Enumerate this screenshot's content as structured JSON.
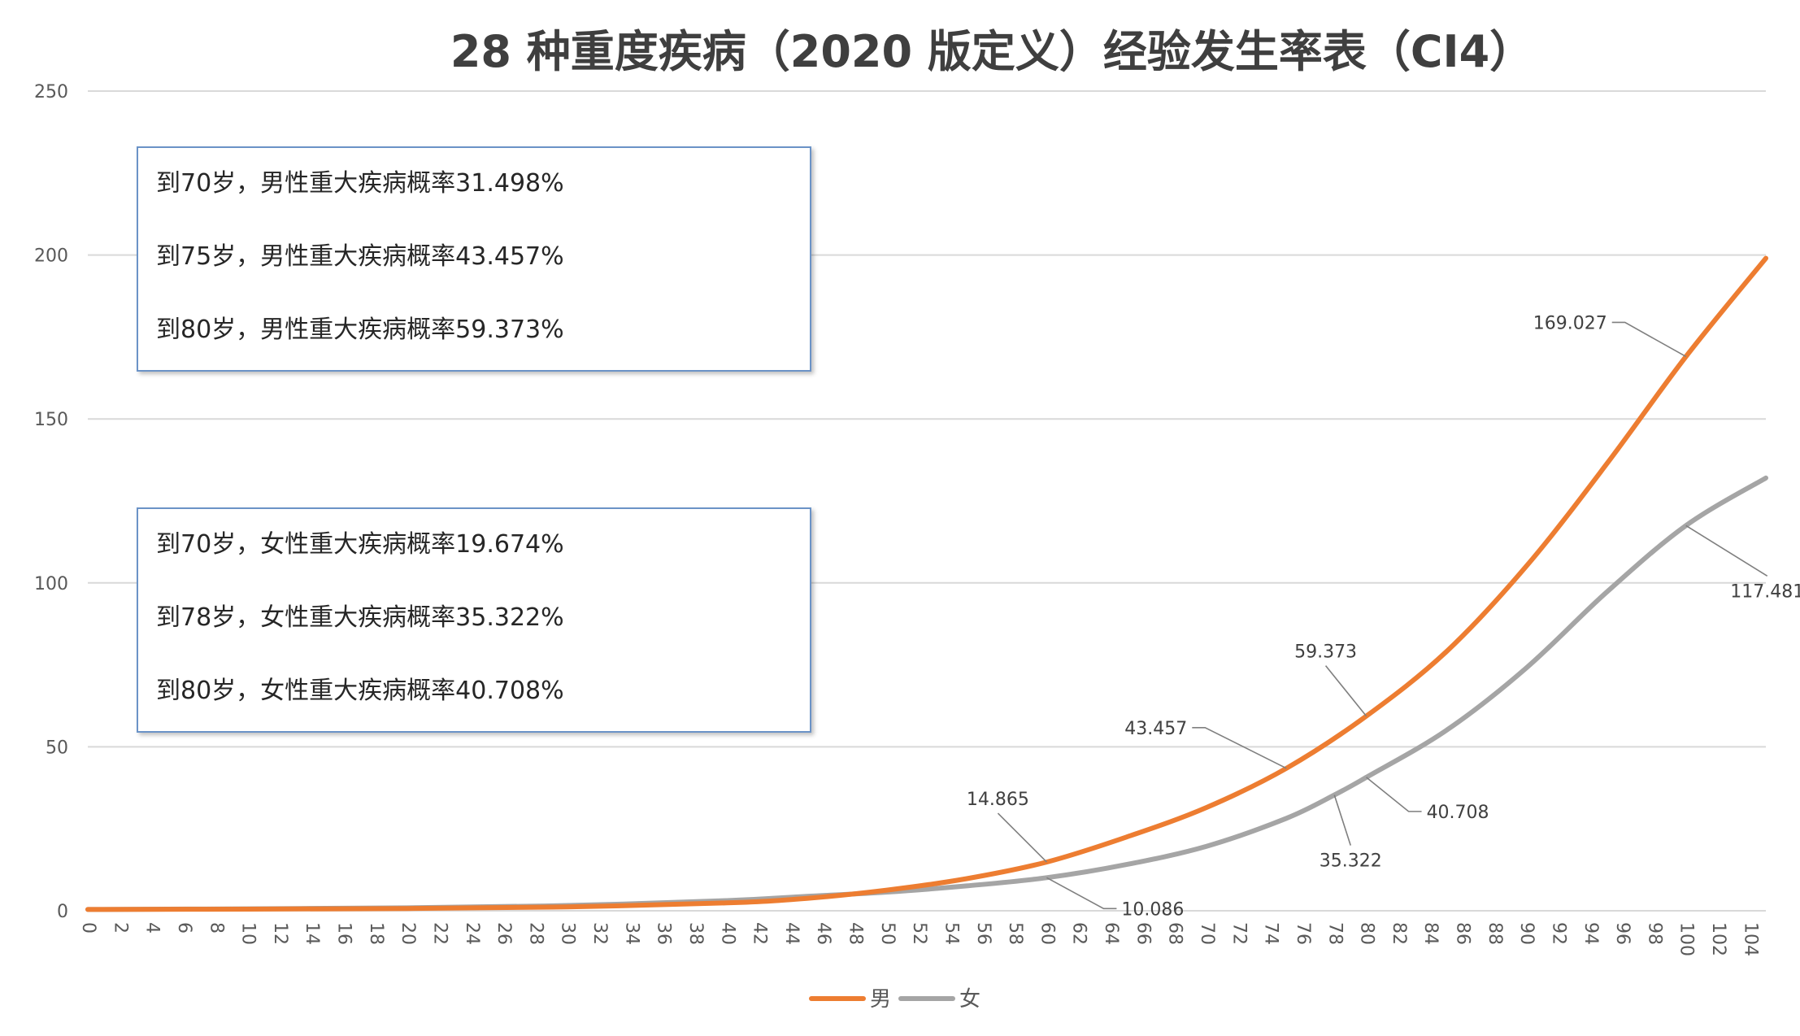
{
  "chart_data": {
    "type": "line",
    "title": "28 种重度疾病（2020 版定义）经验发生率表（CI4）",
    "xlabel": "",
    "ylabel": "",
    "ylim": [
      0,
      250
    ],
    "yticks": [
      0,
      50,
      100,
      150,
      200,
      250
    ],
    "xlim": [
      0,
      105
    ],
    "xtick_step": 2,
    "grid": "horizontal",
    "legend_position": "bottom-center",
    "series": [
      {
        "name": "男",
        "color": "#ed7d31",
        "x": [
          0,
          10,
          20,
          30,
          40,
          45,
          50,
          55,
          60,
          65,
          70,
          75,
          80,
          85,
          90,
          95,
          100,
          105
        ],
        "values": [
          0.4,
          0.5,
          0.7,
          1.2,
          2.4,
          3.8,
          6.3,
          9.8,
          14.865,
          22.5,
          31.498,
          43.457,
          59.373,
          79,
          105,
          136,
          169.027,
          199
        ]
      },
      {
        "name": "女",
        "color": "#a5a5a5",
        "x": [
          0,
          10,
          20,
          30,
          40,
          45,
          50,
          55,
          60,
          65,
          70,
          75,
          78,
          80,
          85,
          90,
          95,
          100,
          105
        ],
        "values": [
          0.4,
          0.6,
          0.9,
          1.6,
          3.1,
          4.4,
          5.7,
          7.6,
          10.086,
          14.1,
          19.674,
          28.2,
          35.322,
          40.708,
          55,
          74,
          97,
          117.481,
          132
        ]
      }
    ],
    "annotations": [
      {
        "series": 0,
        "x": 60,
        "y": 14.865,
        "text": "14.865"
      },
      {
        "series": 0,
        "x": 75,
        "y": 43.457,
        "text": "43.457"
      },
      {
        "series": 0,
        "x": 80,
        "y": 59.373,
        "text": "59.373"
      },
      {
        "series": 0,
        "x": 100,
        "y": 169.027,
        "text": "169.027"
      },
      {
        "series": 1,
        "x": 60,
        "y": 10.086,
        "text": "10.086"
      },
      {
        "series": 1,
        "x": 78,
        "y": 35.322,
        "text": "35.322"
      },
      {
        "series": 1,
        "x": 80,
        "y": 40.708,
        "text": "40.708"
      },
      {
        "series": 1,
        "x": 100,
        "y": 117.481,
        "text": "117.481"
      }
    ]
  },
  "info_boxes": {
    "male": [
      "到70岁，男性重大疾病概率31.498%",
      "到75岁，男性重大疾病概率43.457%",
      "到80岁，男性重大疾病概率59.373%"
    ],
    "female": [
      "到70岁，女性重大疾病概率19.674%",
      "到78岁，女性重大疾病概率35.322%",
      "到80岁，女性重大疾病概率40.708%"
    ]
  }
}
